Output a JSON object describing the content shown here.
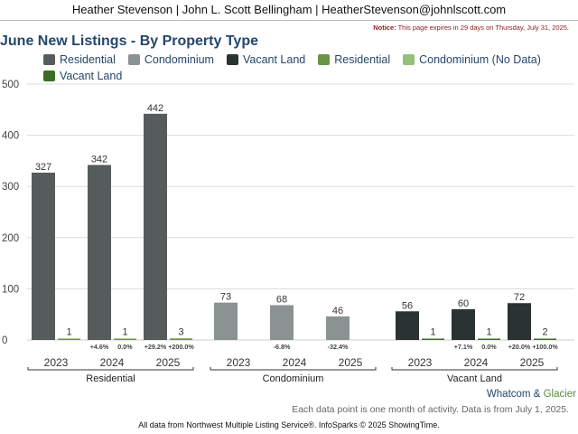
{
  "header": {
    "agents": "Heather Stevenson | John L. Scott Bellingham | HeatherStevenson@johnlscott.com"
  },
  "notice": {
    "label": "Notice:",
    "text": " This page expires in 29 days on Thursday, July 31, 2025."
  },
  "footer": {
    "geo_part1": "Whatcom",
    "geo_amp": " & ",
    "geo_part2": "Glacier",
    "note": "Each data point is one month of activity. Data is from July 1, 2025.",
    "source": "All data from Northwest Multiple Listing Service®. InfoSparks © 2025 ShowingTime."
  },
  "colors": {
    "residential": "#565b5b",
    "condominium": "#8b9392",
    "vacant_land": "#2a3332",
    "residential_nd": "#6a9348",
    "condominium_nd": "#94c07a",
    "vacant_land_nd": "#3b6e26"
  },
  "chart_data": {
    "type": "bar",
    "title": "June New Listings - By Property Type",
    "legend": [
      {
        "name": "Residential",
        "color": "#565b5b"
      },
      {
        "name": "Condominium",
        "color": "#8b9392"
      },
      {
        "name": "Vacant Land",
        "color": "#2a3332"
      },
      {
        "name": "Residential",
        "color": "#6a9348"
      },
      {
        "name": "Condominium (No Data)",
        "color": "#94c07a"
      },
      {
        "name": "Vacant Land",
        "color": "#3b6e26"
      }
    ],
    "ylim": [
      0,
      500
    ],
    "yticks": [
      "0",
      "100",
      "200",
      "300",
      "400",
      "500"
    ],
    "ytick_values": [
      0,
      100,
      200,
      300,
      400,
      500
    ],
    "grid": true,
    "groups": [
      {
        "name": "Residential",
        "years": [
          "2023",
          "2024",
          "2025"
        ],
        "primary": [
          327,
          342,
          442
        ],
        "secondary": [
          1,
          1,
          3
        ],
        "primary_color": "#565b5b",
        "secondary_color": "#6a9348",
        "primary_change": [
          "",
          "+4.6%",
          "+29.2%"
        ],
        "secondary_change": [
          "",
          "0.0%",
          "+200.0%"
        ]
      },
      {
        "name": "Condominium",
        "years": [
          "2023",
          "2024",
          "2025"
        ],
        "primary": [
          73,
          68,
          46
        ],
        "secondary": [
          null,
          null,
          null
        ],
        "primary_color": "#8b9392",
        "secondary_color": "#94c07a",
        "primary_change": [
          "",
          "-6.8%",
          "-32.4%"
        ],
        "secondary_change": [
          "",
          "",
          ""
        ]
      },
      {
        "name": "Vacant Land",
        "years": [
          "2023",
          "2024",
          "2025"
        ],
        "primary": [
          56,
          60,
          72
        ],
        "secondary": [
          1,
          1,
          2
        ],
        "primary_color": "#2a3332",
        "secondary_color": "#3b6e26",
        "primary_change": [
          "",
          "+7.1%",
          "+20.0%"
        ],
        "secondary_change": [
          "",
          "0.0%",
          "+100.0%"
        ]
      }
    ]
  }
}
